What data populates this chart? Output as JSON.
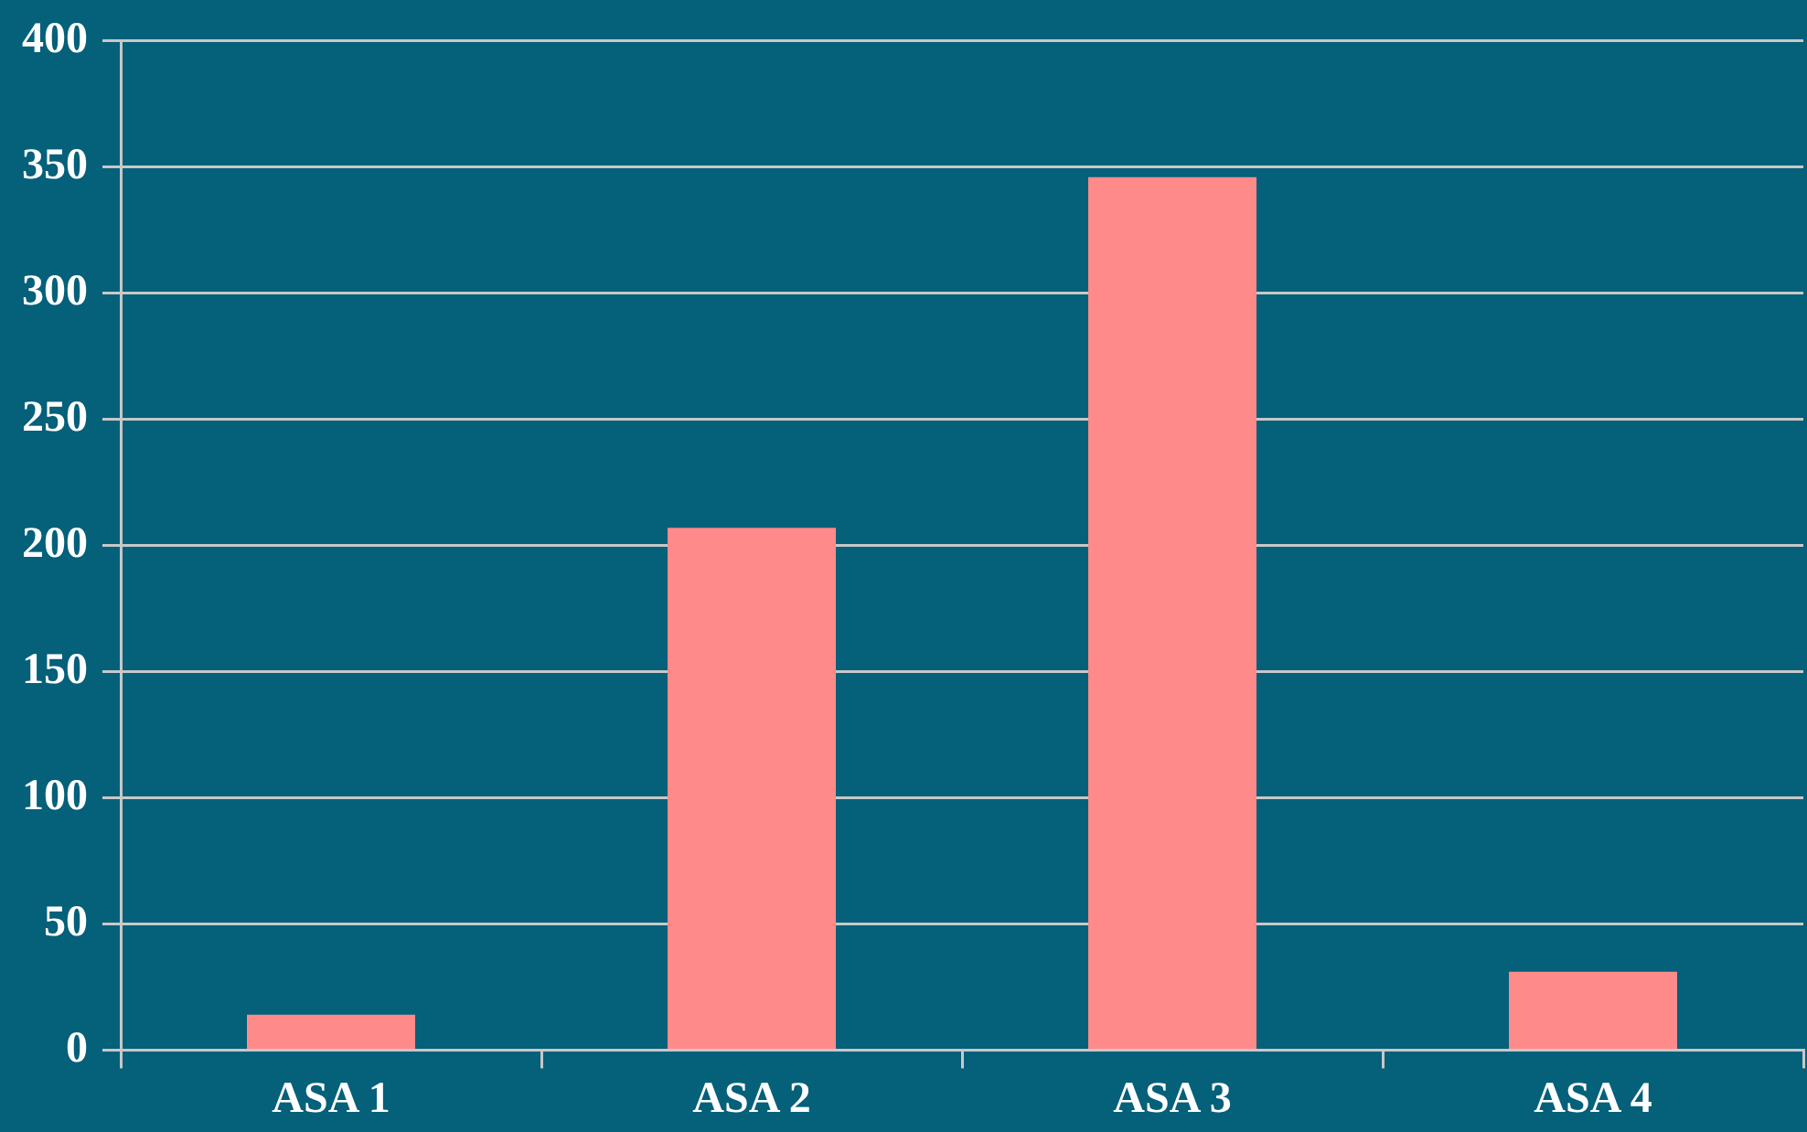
{
  "chart_data": {
    "type": "bar",
    "categories": [
      "ASA 1",
      "ASA 2",
      "ASA 3",
      "ASA 4"
    ],
    "values": [
      14,
      207,
      346,
      31
    ],
    "color": "#ff8a8a",
    "ylim": [
      0,
      400
    ],
    "yticks": [
      0,
      50,
      100,
      150,
      200,
      250,
      300,
      350,
      400
    ],
    "grid": "y"
  }
}
